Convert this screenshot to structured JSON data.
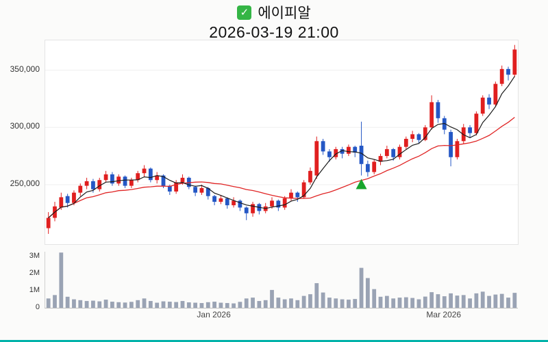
{
  "header": {
    "check_glyph": "✓",
    "title": "에이피알",
    "datetime": "2026-03-19 21:00"
  },
  "colors": {
    "up": "#e01f1f",
    "down": "#2457c5",
    "ma_short": "#1a1a1a",
    "ma_long": "#e02424",
    "volume": "#9aa3b4",
    "marker": "#17a52c",
    "accent_bar": "#00b2a9",
    "check_bg": "#34b545"
  },
  "chart_data": [
    {
      "type": "candlestick",
      "title": "에이피알",
      "subtitle": "2026-03-19 21:00",
      "ylim": [
        198000,
        376000
      ],
      "yticks": [
        {
          "value": 250000,
          "label": "250,000"
        },
        {
          "value": 300000,
          "label": "300,000"
        },
        {
          "value": 350000,
          "label": "350,000"
        }
      ],
      "ma_short": {
        "period": 5
      },
      "ma_long": {
        "period": 20
      },
      "marker": {
        "index": 49,
        "type": "up-triangle"
      },
      "candles": [
        [
          212000,
          226000,
          207000,
          221000
        ],
        [
          221000,
          235000,
          218000,
          231000
        ],
        [
          230000,
          243000,
          228000,
          239000
        ],
        [
          240000,
          242000,
          230000,
          234000
        ],
        [
          234000,
          245000,
          232000,
          243000
        ],
        [
          243000,
          251000,
          240000,
          249000
        ],
        [
          249000,
          256000,
          246000,
          253000
        ],
        [
          253000,
          255000,
          243000,
          246000
        ],
        [
          246000,
          256000,
          244000,
          254000
        ],
        [
          254000,
          262000,
          252000,
          259000
        ],
        [
          259000,
          261000,
          249000,
          251000
        ],
        [
          251000,
          259000,
          249000,
          257000
        ],
        [
          257000,
          258000,
          247000,
          249000
        ],
        [
          249000,
          256000,
          247000,
          254000
        ],
        [
          254000,
          262000,
          252000,
          260000
        ],
        [
          260000,
          267000,
          257000,
          264000
        ],
        [
          264000,
          265000,
          252000,
          254000
        ],
        [
          254000,
          261000,
          251000,
          258000
        ],
        [
          258000,
          259000,
          247000,
          249000
        ],
        [
          249000,
          250000,
          241000,
          244000
        ],
        [
          244000,
          254000,
          242000,
          252000
        ],
        [
          252000,
          259000,
          250000,
          256000
        ],
        [
          256000,
          257000,
          246000,
          248000
        ],
        [
          248000,
          249000,
          240000,
          243000
        ],
        [
          243000,
          250000,
          241000,
          247000
        ],
        [
          247000,
          248000,
          237000,
          240000
        ],
        [
          240000,
          241000,
          232000,
          235000
        ],
        [
          235000,
          241000,
          233000,
          238000
        ],
        [
          238000,
          239000,
          229000,
          232000
        ],
        [
          232000,
          239000,
          230000,
          236000
        ],
        [
          236000,
          237000,
          227000,
          230000
        ],
        [
          230000,
          231000,
          219000,
          225000
        ],
        [
          225000,
          235000,
          222000,
          233000
        ],
        [
          233000,
          234000,
          224000,
          227000
        ],
        [
          227000,
          234000,
          225000,
          231000
        ],
        [
          231000,
          239000,
          229000,
          236000
        ],
        [
          236000,
          237000,
          227000,
          230000
        ],
        [
          230000,
          240000,
          228000,
          238000
        ],
        [
          238000,
          246000,
          236000,
          243000
        ],
        [
          243000,
          244000,
          235000,
          239000
        ],
        [
          239000,
          254000,
          238000,
          252000
        ],
        [
          252000,
          265000,
          250000,
          262000
        ],
        [
          258000,
          292000,
          255000,
          288000
        ],
        [
          288000,
          290000,
          276000,
          279000
        ],
        [
          279000,
          281000,
          270000,
          274000
        ],
        [
          274000,
          283000,
          272000,
          281000
        ],
        [
          281000,
          283000,
          273000,
          277000
        ],
        [
          277000,
          285000,
          275000,
          283000
        ],
        [
          283000,
          284000,
          274000,
          278000
        ],
        [
          284000,
          305000,
          258000,
          268000
        ],
        [
          268000,
          271000,
          257000,
          261000
        ],
        [
          261000,
          272000,
          259000,
          270000
        ],
        [
          270000,
          277000,
          267000,
          275000
        ],
        [
          275000,
          284000,
          273000,
          281000
        ],
        [
          281000,
          282000,
          271000,
          274000
        ],
        [
          274000,
          285000,
          272000,
          283000
        ],
        [
          283000,
          292000,
          281000,
          290000
        ],
        [
          290000,
          297000,
          287000,
          294000
        ],
        [
          294000,
          295000,
          286000,
          289000
        ],
        [
          289000,
          302000,
          288000,
          300000
        ],
        [
          300000,
          328000,
          298000,
          322000
        ],
        [
          322000,
          324000,
          304000,
          308000
        ],
        [
          308000,
          310000,
          294000,
          298000
        ],
        [
          296000,
          298000,
          266000,
          274000
        ],
        [
          274000,
          290000,
          272000,
          288000
        ],
        [
          288000,
          303000,
          286000,
          300000
        ],
        [
          300000,
          302000,
          291000,
          295000
        ],
        [
          295000,
          314000,
          293000,
          312000
        ],
        [
          312000,
          328000,
          310000,
          326000
        ],
        [
          326000,
          329000,
          316000,
          320000
        ],
        [
          320000,
          340000,
          318000,
          338000
        ],
        [
          338000,
          354000,
          336000,
          351000
        ],
        [
          351000,
          353000,
          341000,
          346000
        ],
        [
          346000,
          372000,
          344000,
          368000
        ]
      ]
    },
    {
      "type": "bar",
      "title": "Volume",
      "ylim": [
        0,
        3300000
      ],
      "yticks": [
        {
          "value": 0,
          "label": "0"
        },
        {
          "value": 1000000,
          "label": "1M"
        },
        {
          "value": 2000000,
          "label": "2M"
        },
        {
          "value": 3000000,
          "label": "3M"
        }
      ],
      "xticks": [
        {
          "index": 26,
          "label": "Jan 2026"
        },
        {
          "index": 62,
          "label": "Mar 2026"
        }
      ],
      "values": [
        550000,
        750000,
        3250000,
        650000,
        500000,
        450000,
        400000,
        420000,
        380000,
        480000,
        360000,
        330000,
        310000,
        350000,
        450000,
        550000,
        400000,
        300000,
        380000,
        360000,
        340000,
        400000,
        320000,
        300000,
        280000,
        330000,
        360000,
        300000,
        280000,
        260000,
        350000,
        550000,
        600000,
        400000,
        450000,
        1050000,
        600000,
        500000,
        550000,
        450000,
        700000,
        800000,
        1450000,
        900000,
        600000,
        550000,
        500000,
        480000,
        520000,
        2350000,
        1750000,
        1100000,
        650000,
        700000,
        550000,
        600000,
        620000,
        580000,
        500000,
        660000,
        920000,
        800000,
        680000,
        850000,
        720000,
        750000,
        550000,
        850000,
        950000,
        700000,
        780000,
        820000,
        600000,
        880000
      ]
    }
  ]
}
